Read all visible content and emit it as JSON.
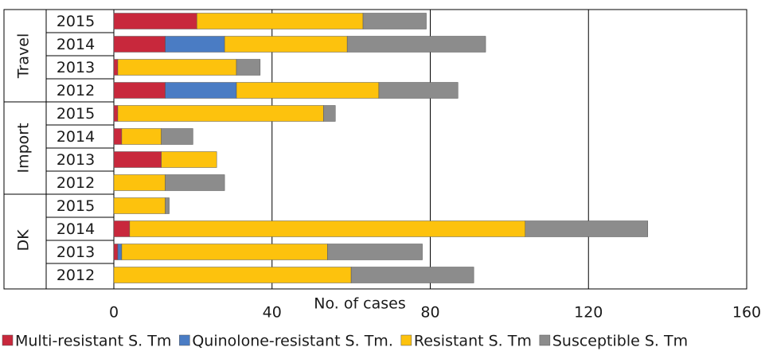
{
  "chart_data": {
    "type": "stacked-barh",
    "x_label": "No. of cases",
    "groups": [
      "Travel",
      "Import",
      "DK"
    ],
    "categories": [
      [
        "2015",
        "2014",
        "2013",
        "2012"
      ],
      [
        "2015",
        "2014",
        "2013",
        "2012"
      ],
      [
        "2015",
        "2014",
        "2013",
        "2012"
      ]
    ],
    "series": [
      {
        "name": "Multi-resistant S. Tm",
        "color": "#c8283c",
        "values": [
          [
            21,
            13,
            1,
            13
          ],
          [
            1,
            2,
            12,
            0
          ],
          [
            0,
            4,
            1,
            0
          ]
        ]
      },
      {
        "name": "Quinolone-resistant S. Tm.",
        "color": "#4a7cc4",
        "values": [
          [
            0,
            15,
            0,
            18
          ],
          [
            0,
            0,
            0,
            0
          ],
          [
            0,
            0,
            1,
            0
          ]
        ]
      },
      {
        "name": "Resistant S. Tm",
        "color": "#fdc20d",
        "values": [
          [
            42,
            31,
            30,
            36
          ],
          [
            52,
            10,
            14,
            13
          ],
          [
            13,
            100,
            52,
            60
          ]
        ]
      },
      {
        "name": "Susceptible S. Tm",
        "color": "#8c8c8c",
        "values": [
          [
            16,
            35,
            6,
            20
          ],
          [
            3,
            8,
            0,
            15
          ],
          [
            1,
            31,
            24,
            31
          ]
        ]
      }
    ],
    "xlim": [
      0,
      160
    ],
    "xticks": [
      0,
      40,
      80,
      120,
      160
    ],
    "grid": true
  }
}
